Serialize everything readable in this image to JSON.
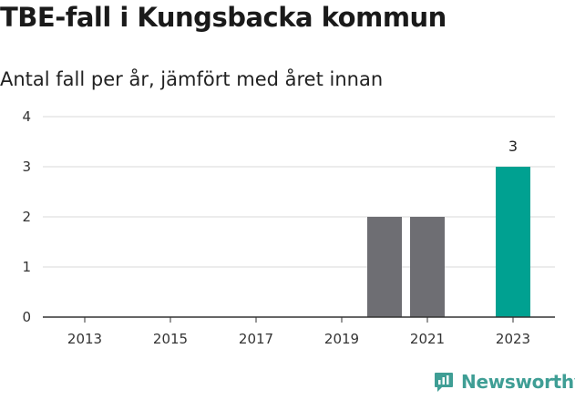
{
  "title": "TBE-fall i Kungsbacka kommun",
  "subtitle": "Antal fall per år, jämfört med året innan",
  "brand": {
    "name": "Newsworthy",
    "icon": "newsworthy-logo-icon"
  },
  "colors": {
    "past": "#6e6e73",
    "current": "#00a191",
    "grid": "#d9d9d9",
    "axis": "#333333",
    "brand": "#3f9e95"
  },
  "chart_data": {
    "type": "bar",
    "title": "TBE-fall i Kungsbacka kommun",
    "subtitle": "Antal fall per år, jämfört med året innan",
    "xlabel": "",
    "ylabel": "",
    "x": [
      2013,
      2014,
      2015,
      2016,
      2017,
      2018,
      2019,
      2020,
      2021,
      2022,
      2023
    ],
    "values": [
      0,
      0,
      0,
      0,
      0,
      0,
      0,
      2,
      2,
      0,
      3
    ],
    "highlight": 2023,
    "data_labels": [
      {
        "x": 2023,
        "text": "3"
      }
    ],
    "xticks": [
      "2013",
      "2015",
      "2017",
      "2019",
      "2021",
      "2023"
    ],
    "yticks": [
      "0",
      "1",
      "2",
      "3",
      "4"
    ],
    "ylim": [
      0,
      4
    ],
    "grid": true,
    "legend": "none"
  }
}
